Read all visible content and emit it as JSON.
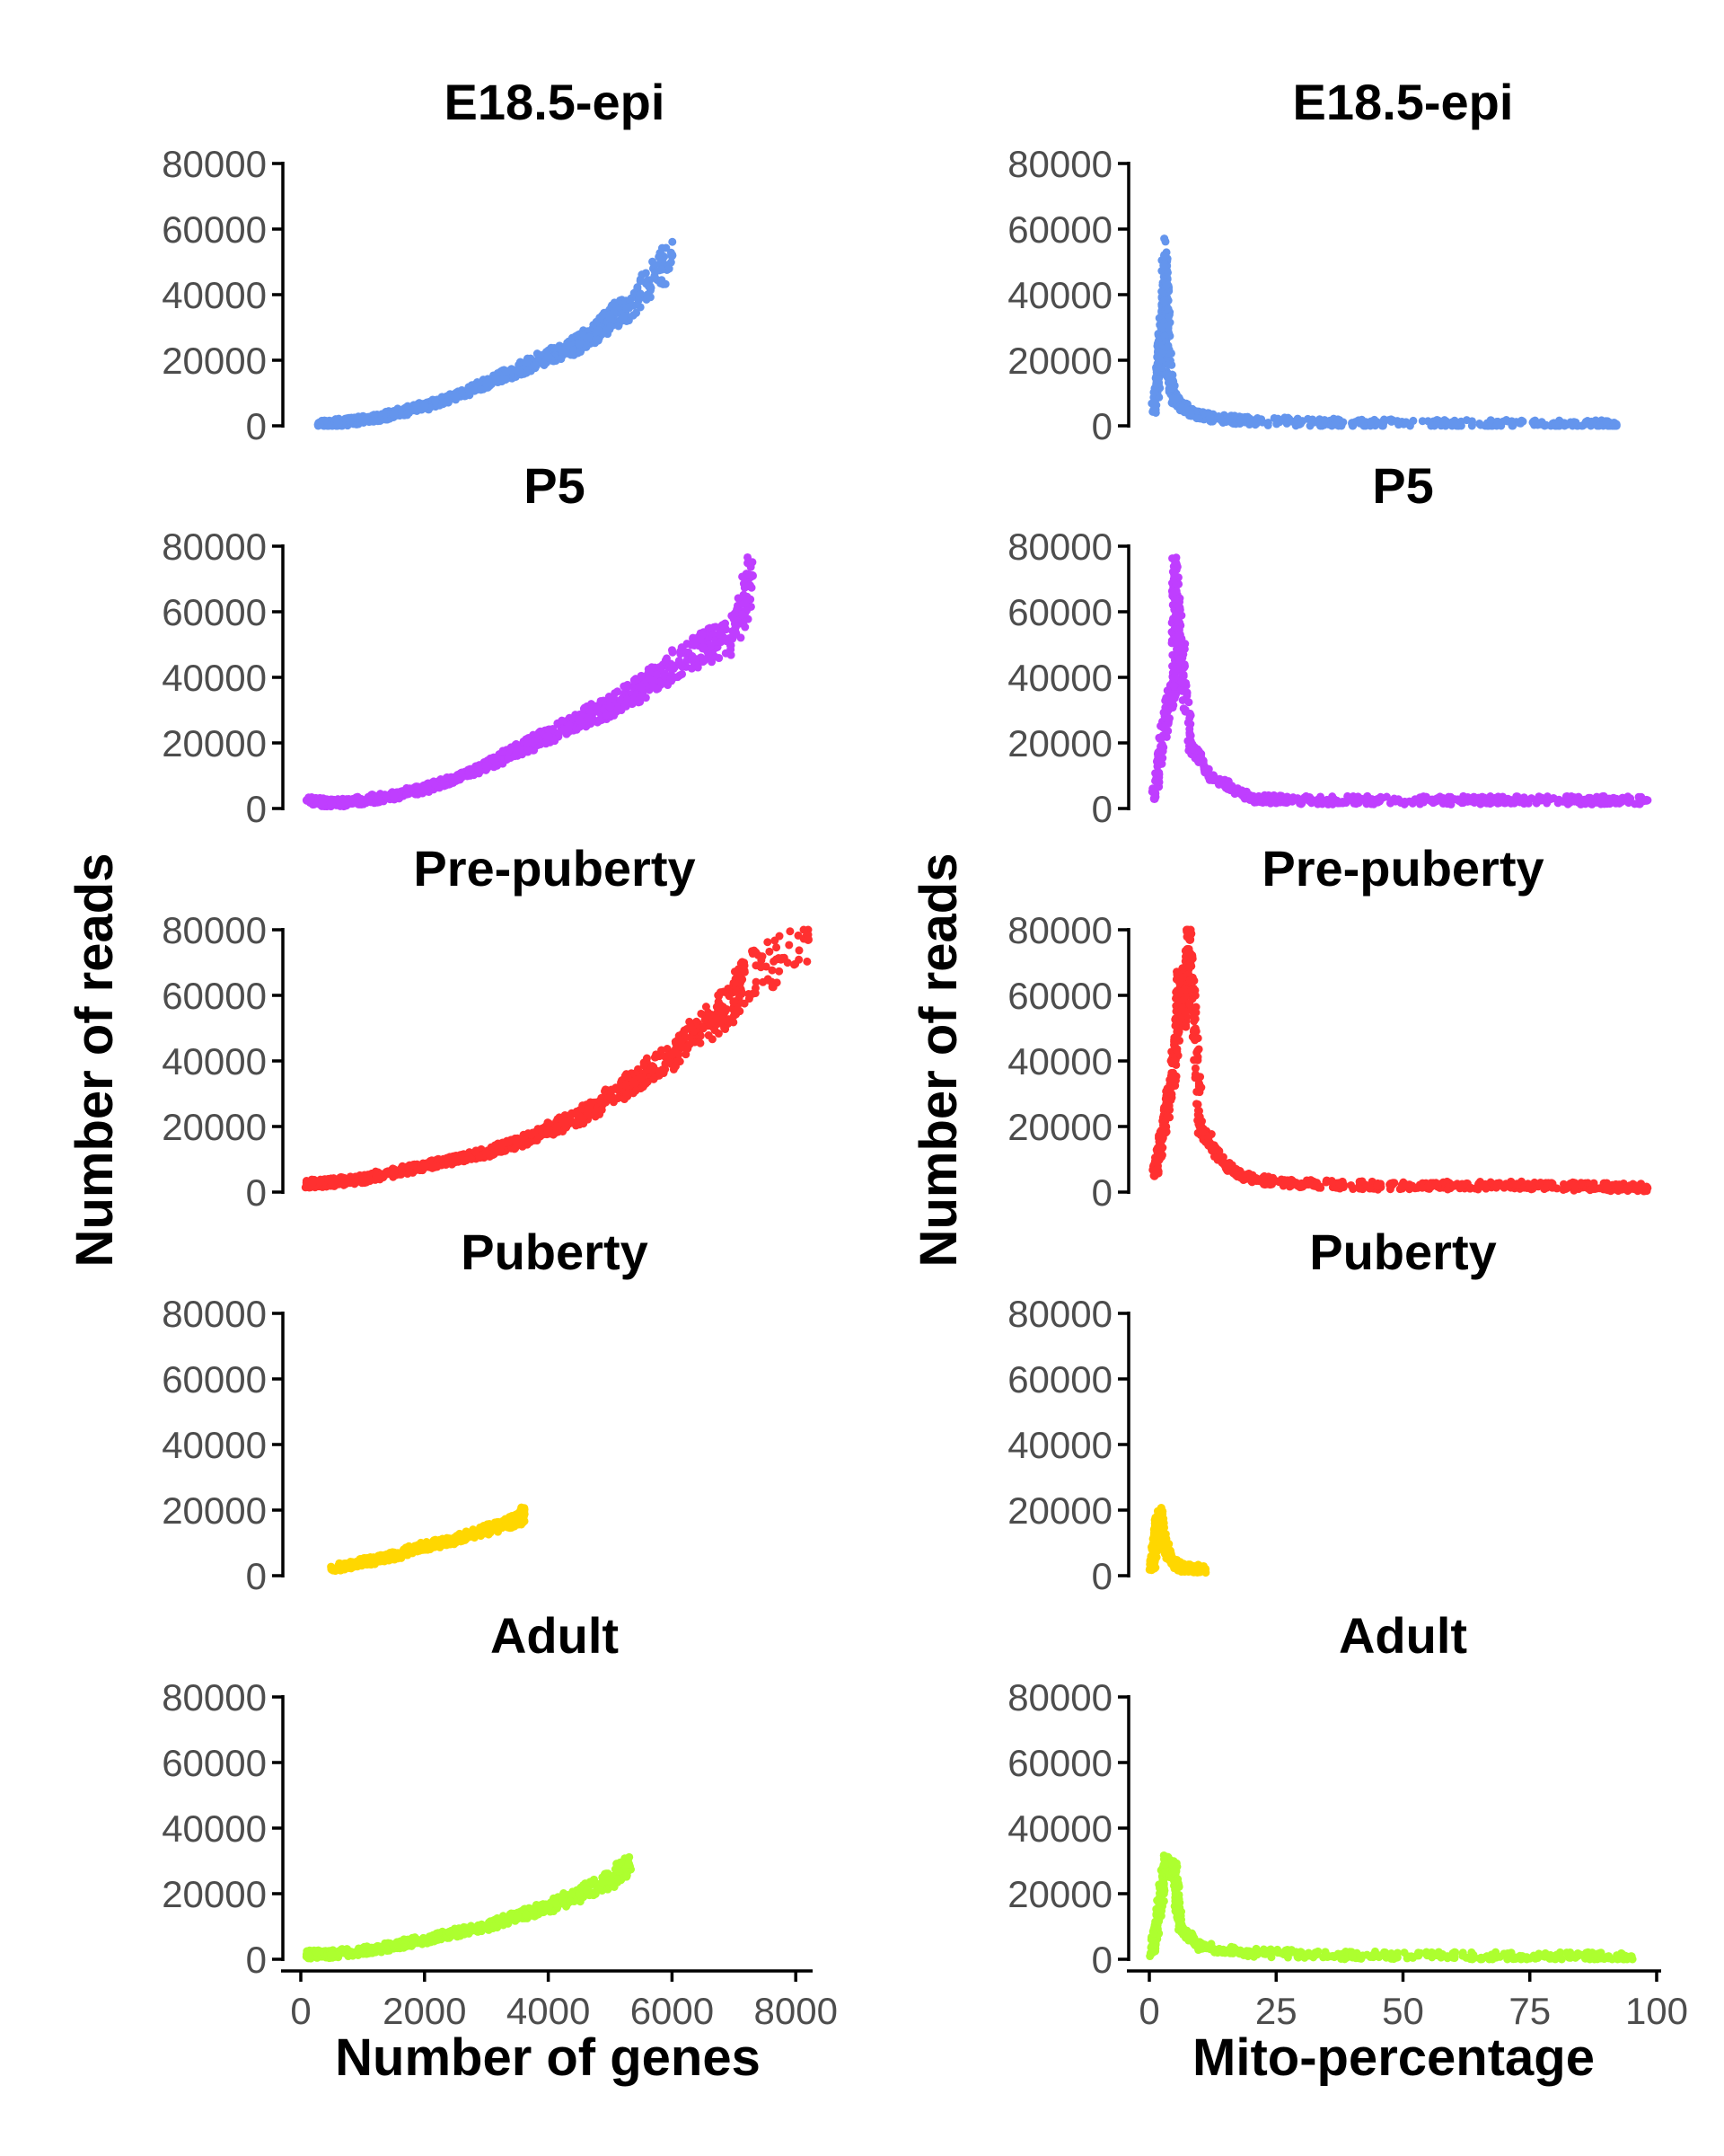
{
  "chart_data": [
    {
      "type": "scatter",
      "column": 0,
      "row": 0,
      "title": "E18.5-epi",
      "color": "#6495ED",
      "xlabel": "Number of genes",
      "ylabel": "Number of reads",
      "xlim": [
        0,
        8200
      ],
      "ylim": [
        0,
        80000
      ],
      "points": [
        [
          300,
          300
        ],
        [
          600,
          800
        ],
        [
          1000,
          1800
        ],
        [
          1500,
          3500
        ],
        [
          2000,
          6000
        ],
        [
          2500,
          9000
        ],
        [
          3000,
          13000
        ],
        [
          3500,
          17000
        ],
        [
          4000,
          21000
        ],
        [
          4500,
          25000
        ],
        [
          4800,
          29000
        ],
        [
          5000,
          33000
        ],
        [
          5300,
          36000
        ],
        [
          6000,
          52000
        ]
      ]
    },
    {
      "type": "scatter",
      "column": 0,
      "row": 1,
      "title": "P5",
      "color": "#BF3EFF",
      "xlabel": "Number of genes",
      "ylabel": "Number of reads",
      "xlim": [
        0,
        8200
      ],
      "ylim": [
        0,
        80000
      ],
      "points": [
        [
          100,
          2500
        ],
        [
          500,
          1500
        ],
        [
          1000,
          2500
        ],
        [
          1500,
          4000
        ],
        [
          2000,
          6000
        ],
        [
          2500,
          9000
        ],
        [
          3000,
          13000
        ],
        [
          3500,
          18000
        ],
        [
          4000,
          22000
        ],
        [
          4500,
          27000
        ],
        [
          5000,
          31000
        ],
        [
          5500,
          37000
        ],
        [
          6000,
          43000
        ],
        [
          6500,
          49000
        ],
        [
          7000,
          53000
        ],
        [
          7300,
          71000
        ]
      ]
    },
    {
      "type": "scatter",
      "column": 0,
      "row": 2,
      "title": "Pre-puberty",
      "color": "#FF3030",
      "xlabel": "Number of genes",
      "ylabel": "Number of reads",
      "xlim": [
        0,
        8200
      ],
      "ylim": [
        0,
        80000
      ],
      "points": [
        [
          100,
          2500
        ],
        [
          500,
          3000
        ],
        [
          1000,
          4000
        ],
        [
          1500,
          6000
        ],
        [
          2000,
          8000
        ],
        [
          2500,
          10000
        ],
        [
          3000,
          12000
        ],
        [
          3500,
          15000
        ],
        [
          4000,
          19000
        ],
        [
          4500,
          23000
        ],
        [
          5000,
          29000
        ],
        [
          5500,
          35000
        ],
        [
          6000,
          42000
        ],
        [
          6500,
          50000
        ],
        [
          7000,
          58000
        ],
        [
          7100,
          64000
        ],
        [
          8200,
          77000
        ]
      ]
    },
    {
      "type": "scatter",
      "column": 0,
      "row": 3,
      "title": "Puberty",
      "color": "#FFD700",
      "xlabel": "Number of genes",
      "ylabel": "Number of reads",
      "xlim": [
        0,
        8200
      ],
      "ylim": [
        0,
        80000
      ],
      "points": [
        [
          500,
          2000
        ],
        [
          1000,
          4000
        ],
        [
          1500,
          6000
        ],
        [
          2000,
          9000
        ],
        [
          2500,
          11000
        ],
        [
          3000,
          14000
        ],
        [
          3500,
          17000
        ],
        [
          3600,
          19000
        ]
      ]
    },
    {
      "type": "scatter",
      "column": 0,
      "row": 4,
      "title": "Adult",
      "color": "#ADFF2F",
      "xlabel": "Number of genes",
      "ylabel": "Number of reads",
      "xlim": [
        0,
        8200
      ],
      "ylim": [
        0,
        80000
      ],
      "points": [
        [
          100,
          1500
        ],
        [
          500,
          1500
        ],
        [
          1000,
          2500
        ],
        [
          1500,
          4000
        ],
        [
          2000,
          6000
        ],
        [
          2500,
          8000
        ],
        [
          3000,
          10000
        ],
        [
          3500,
          13000
        ],
        [
          4000,
          16000
        ],
        [
          4500,
          20000
        ],
        [
          5000,
          24000
        ],
        [
          5300,
          29000
        ]
      ]
    },
    {
      "type": "scatter",
      "column": 1,
      "row": 0,
      "title": "E18.5-epi",
      "color": "#6495ED",
      "xlabel": "Mito-percentage",
      "ylabel": "Number of reads",
      "xlim": [
        0,
        100
      ],
      "ylim": [
        0,
        80000
      ],
      "points": [
        [
          1,
          5000
        ],
        [
          2,
          20000
        ],
        [
          2.5,
          30000
        ],
        [
          3,
          38000
        ],
        [
          3,
          52000
        ],
        [
          4,
          15000
        ],
        [
          5,
          8000
        ],
        [
          8,
          4000
        ],
        [
          12,
          2500
        ],
        [
          20,
          1500
        ],
        [
          40,
          800
        ],
        [
          60,
          600
        ],
        [
          80,
          500
        ],
        [
          92,
          400
        ]
      ]
    },
    {
      "type": "scatter",
      "column": 1,
      "row": 1,
      "title": "P5",
      "color": "#BF3EFF",
      "xlabel": "Mito-percentage",
      "ylabel": "Number of reads",
      "xlim": [
        0,
        100
      ],
      "ylim": [
        0,
        80000
      ],
      "points": [
        [
          1,
          3000
        ],
        [
          3,
          25000
        ],
        [
          5,
          40000
        ],
        [
          5,
          71000
        ],
        [
          6,
          53000
        ],
        [
          8,
          20000
        ],
        [
          12,
          10000
        ],
        [
          20,
          3000
        ],
        [
          30,
          2500
        ],
        [
          45,
          2500
        ],
        [
          62,
          2500
        ],
        [
          72,
          2500
        ],
        [
          86,
          2500
        ],
        [
          98,
          2500
        ]
      ]
    },
    {
      "type": "scatter",
      "column": 1,
      "row": 2,
      "title": "Pre-puberty",
      "color": "#FF3030",
      "xlabel": "Mito-percentage",
      "ylabel": "Number of reads",
      "xlim": [
        0,
        100
      ],
      "ylim": [
        0,
        80000
      ],
      "points": [
        [
          1,
          5000
        ],
        [
          3,
          20000
        ],
        [
          5,
          40000
        ],
        [
          6,
          64000
        ],
        [
          7,
          55000
        ],
        [
          8,
          77000
        ],
        [
          10,
          20000
        ],
        [
          15,
          8000
        ],
        [
          20,
          4000
        ],
        [
          30,
          2500
        ],
        [
          45,
          2000
        ],
        [
          60,
          2000
        ],
        [
          75,
          2000
        ],
        [
          90,
          1500
        ],
        [
          98,
          1500
        ]
      ]
    },
    {
      "type": "scatter",
      "column": 1,
      "row": 3,
      "title": "Puberty",
      "color": "#FFD700",
      "xlabel": "Mito-percentage",
      "ylabel": "Number of reads",
      "xlim": [
        0,
        100
      ],
      "ylim": [
        0,
        80000
      ],
      "points": [
        [
          0.5,
          2000
        ],
        [
          1,
          8000
        ],
        [
          1.5,
          15000
        ],
        [
          2,
          19000
        ],
        [
          3,
          10000
        ],
        [
          4,
          5000
        ],
        [
          6,
          2500
        ],
        [
          11,
          2000
        ]
      ]
    },
    {
      "type": "scatter",
      "column": 1,
      "row": 4,
      "title": "Adult",
      "color": "#ADFF2F",
      "xlabel": "Mito-percentage",
      "ylabel": "Number of reads",
      "xlim": [
        0,
        100
      ],
      "ylim": [
        0,
        80000
      ],
      "points": [
        [
          0.5,
          2000
        ],
        [
          2,
          15000
        ],
        [
          3,
          29000
        ],
        [
          5,
          27000
        ],
        [
          6,
          10000
        ],
        [
          10,
          4000
        ],
        [
          20,
          2000
        ],
        [
          40,
          1200
        ],
        [
          60,
          1000
        ],
        [
          80,
          900
        ],
        [
          95,
          800
        ]
      ]
    }
  ],
  "y_ticks": [
    "0",
    "20000",
    "40000",
    "60000",
    "80000"
  ],
  "y_tick_values": [
    0,
    20000,
    40000,
    60000,
    80000
  ],
  "x_ticks_left": [
    "0",
    "2000",
    "4000",
    "6000",
    "8000"
  ],
  "x_tick_values_left": [
    0,
    2000,
    4000,
    6000,
    8000
  ],
  "x_ticks_right": [
    "0",
    "25",
    "50",
    "75",
    "100"
  ],
  "x_tick_values_right": [
    0,
    25,
    50,
    75,
    100
  ],
  "labels": {
    "y_title_left": "Number of reads",
    "y_title_right": "Number of reads",
    "x_title_left": "Number of genes",
    "x_title_right": "Mito-percentage"
  }
}
